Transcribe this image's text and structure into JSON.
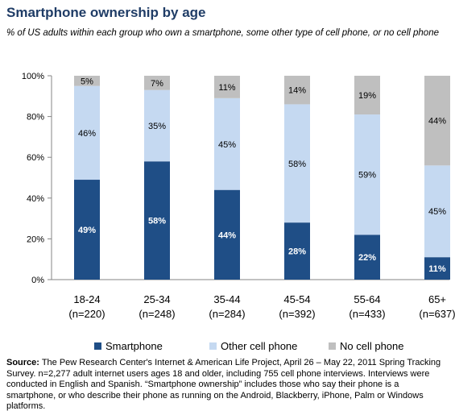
{
  "chart_data": {
    "type": "bar",
    "stacked": true,
    "title": "Smartphone ownership by age",
    "subtitle": "% of US adults within each group who own a smartphone, some other type of cell phone, or no cell phone",
    "categories": [
      "18-24",
      "25-34",
      "35-44",
      "45-54",
      "55-64",
      "65+"
    ],
    "category_sublabels": [
      "(n=220)",
      "(n=248)",
      "(n=284)",
      "(n=392)",
      "(n=433)",
      "(n=637)"
    ],
    "series": [
      {
        "name": "Smartphone",
        "color": "#1f4e86",
        "values": [
          49,
          58,
          44,
          28,
          22,
          11
        ],
        "labels": [
          "49%",
          "58%",
          "44%",
          "28%",
          "22%",
          "11%"
        ]
      },
      {
        "name": "Other cell phone",
        "color": "#c5d9f1",
        "values": [
          46,
          35,
          45,
          58,
          59,
          45
        ],
        "labels": [
          "46%",
          "35%",
          "45%",
          "58%",
          "59%",
          "45%"
        ]
      },
      {
        "name": "No cell phone",
        "color": "#bfbfbf",
        "values": [
          5,
          7,
          11,
          14,
          19,
          44
        ],
        "labels": [
          "5%",
          "7%",
          "11%",
          "14%",
          "19%",
          "44%"
        ]
      }
    ],
    "y_ticks": [
      "0%",
      "20%",
      "40%",
      "60%",
      "80%",
      "100%"
    ],
    "ylim": [
      0,
      100
    ],
    "grid": false,
    "legend_position": "bottom"
  },
  "source": {
    "label": "Source:",
    "text": " The Pew Research Center's Internet & American Life Project, April 26 – May 22, 2011 Spring Tracking Survey. n=2,277 adult internet users ages 18 and older, including 755 cell phone interviews. Interviews were conducted in English and Spanish. “Smartphone ownership” includes those who say their phone is a smartphone, or who describe their phone as running on the Android, Blackberry, iPhone, Palm or Windows platforms."
  }
}
